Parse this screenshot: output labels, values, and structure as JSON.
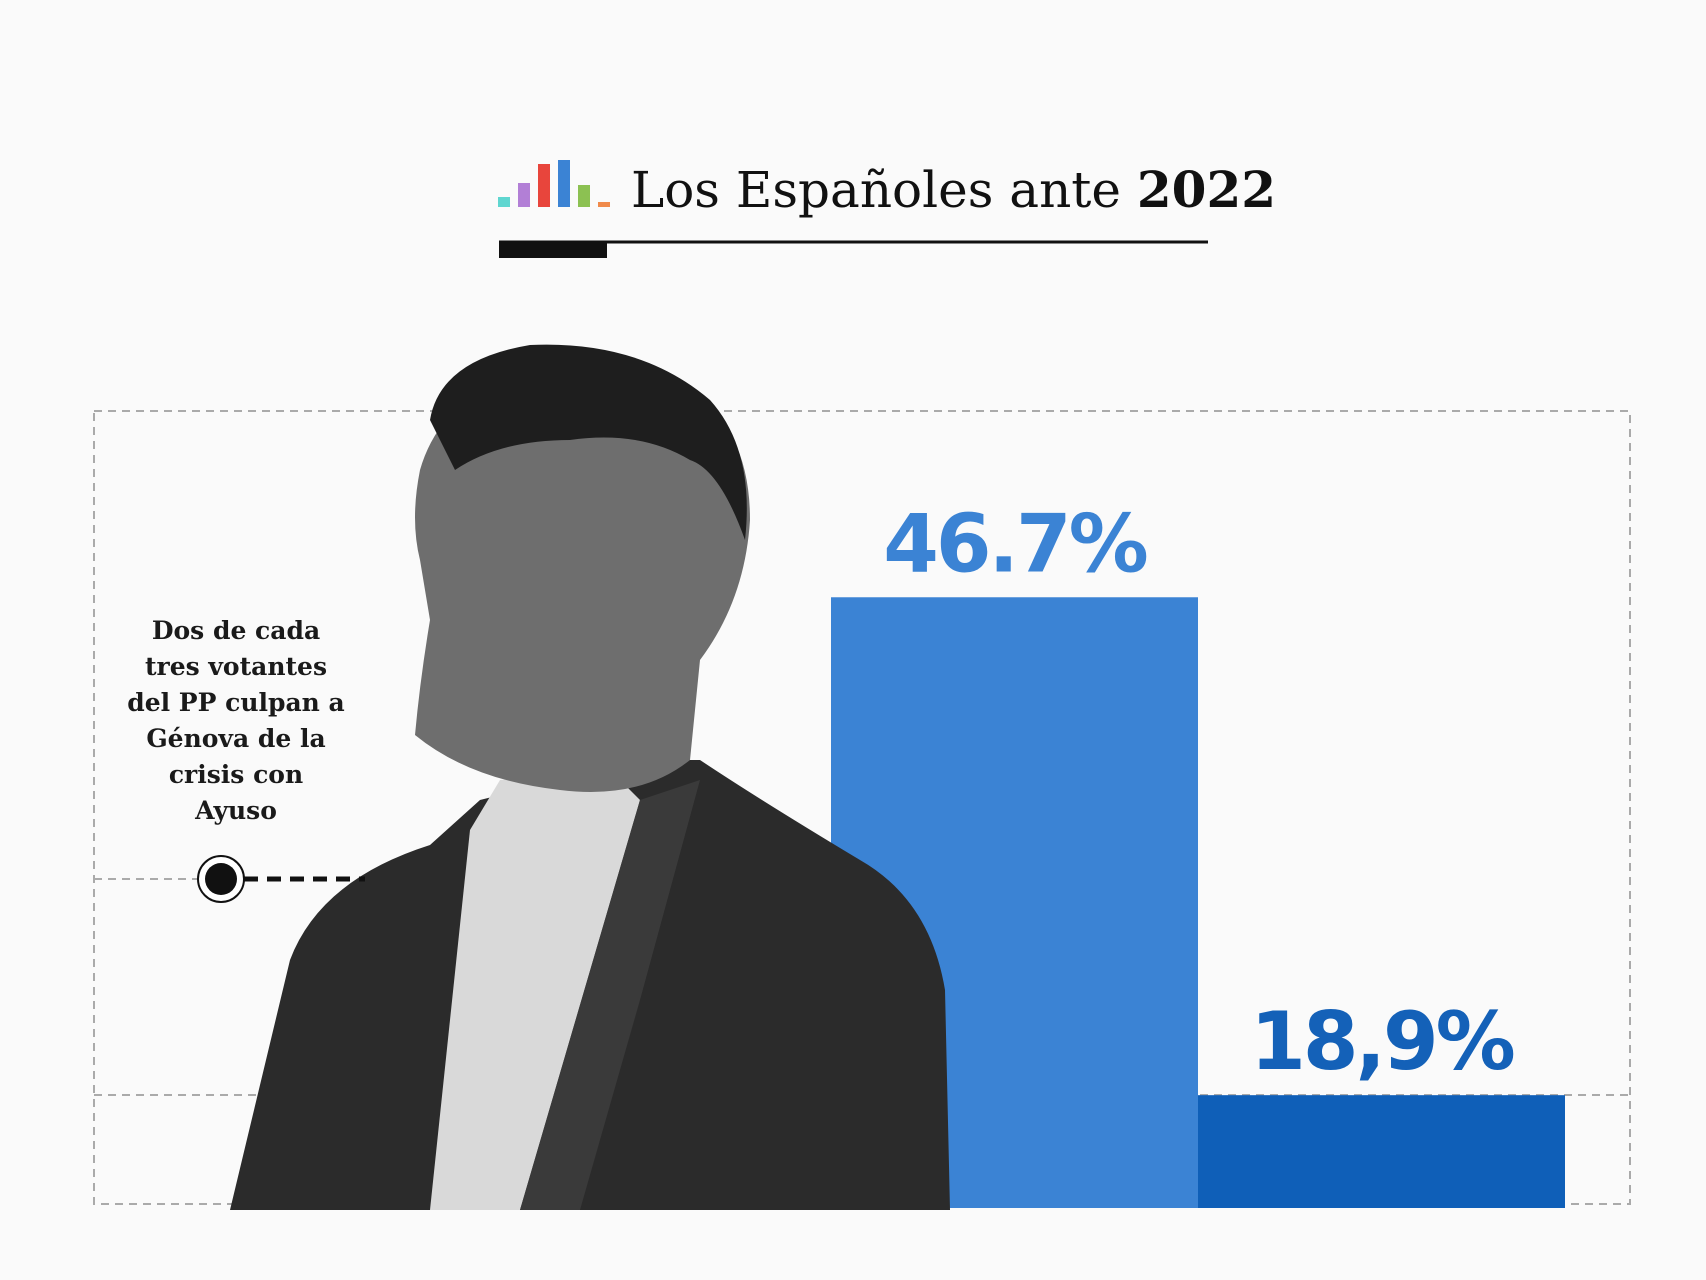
{
  "chart_data": {
    "type": "bar",
    "title": "Los Españoles ante 2022",
    "annotation": [
      "Dos de cada",
      "tres votantes",
      "del PP culpan a",
      "Génova de la",
      "crisis con",
      "Ayuso"
    ],
    "categories": [
      null,
      null
    ],
    "values": [
      46.7,
      18.9
    ],
    "value_labels": [
      "46.7%",
      "18,9%"
    ],
    "colors": [
      "#3b83d4",
      "#0f5fb8"
    ],
    "label_colors": [
      "#3b83d4",
      "#1461b8"
    ],
    "ylim": [
      12.6,
      57.1
    ]
  }
}
